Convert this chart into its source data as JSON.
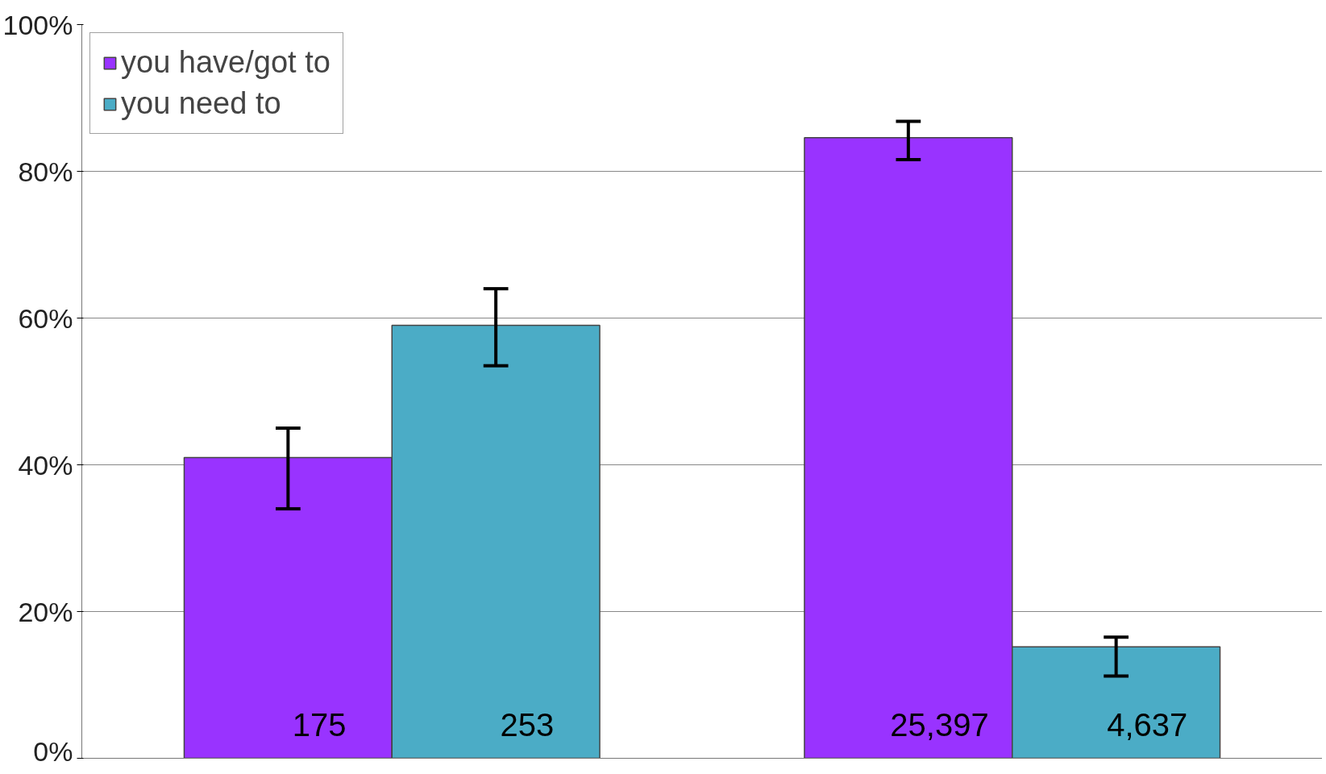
{
  "chart_data": {
    "type": "bar",
    "categories": [
      null,
      null
    ],
    "series": [
      {
        "name": "you have/got to",
        "color": "#9933ff",
        "values": [
          41,
          84.6
        ],
        "errors": [
          [
            34,
            45
          ],
          [
            81.6,
            86.8
          ]
        ]
      },
      {
        "name": "you need to",
        "color": "#4bacc6",
        "values": [
          59,
          15.2
        ],
        "errors": [
          [
            53.5,
            64
          ],
          [
            11.2,
            16.5
          ]
        ]
      }
    ],
    "ylim": [
      0,
      100
    ],
    "yticks": [
      {
        "value": 0,
        "label": "0%"
      },
      {
        "value": 20,
        "label": "20%"
      },
      {
        "value": 40,
        "label": "40%"
      },
      {
        "value": 60,
        "label": "60%"
      },
      {
        "value": 80,
        "label": "80%"
      },
      {
        "value": 100,
        "label": "100%"
      }
    ],
    "annotations": [
      "175",
      "253",
      "25,397",
      "4,637"
    ],
    "grid": "y",
    "legend": "top left",
    "tick_labels": "y"
  }
}
